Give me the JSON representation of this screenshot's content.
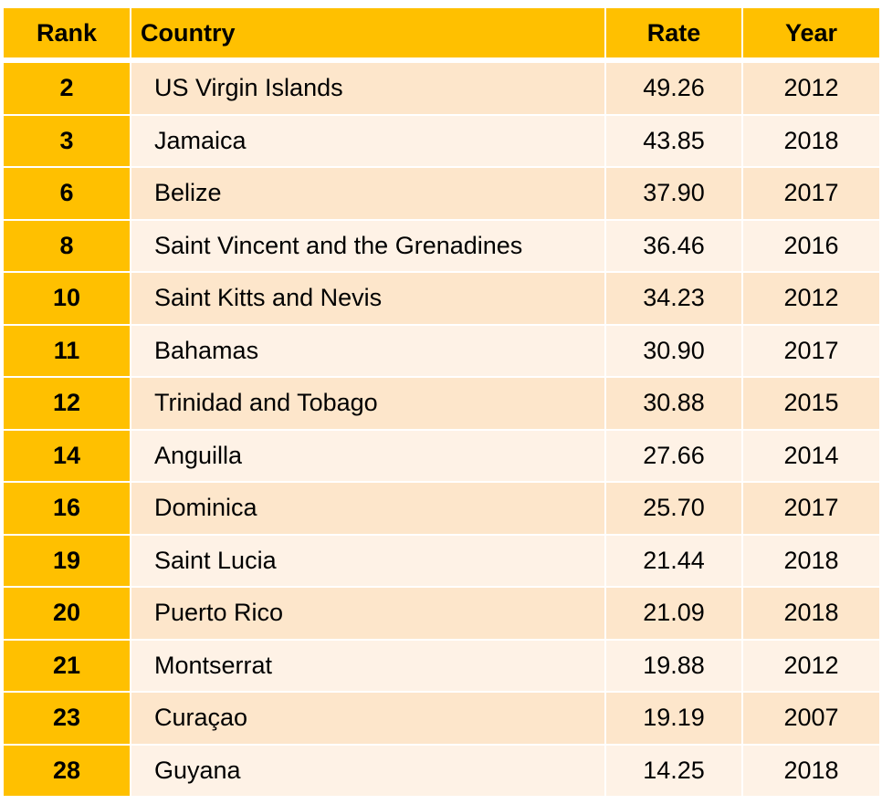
{
  "table": {
    "headers": [
      "Rank",
      "Country",
      "Rate",
      "Year"
    ],
    "rows": [
      {
        "rank": "2",
        "country": "US Virgin Islands",
        "rate": "49.26",
        "year": "2012"
      },
      {
        "rank": "3",
        "country": "Jamaica",
        "rate": "43.85",
        "year": "2018"
      },
      {
        "rank": "6",
        "country": "Belize",
        "rate": "37.90",
        "year": "2017"
      },
      {
        "rank": "8",
        "country": "Saint Vincent and the Grenadines",
        "rate": "36.46",
        "year": "2016"
      },
      {
        "rank": "10",
        "country": "Saint Kitts and Nevis",
        "rate": "34.23",
        "year": "2012"
      },
      {
        "rank": "11",
        "country": "Bahamas",
        "rate": "30.90",
        "year": "2017"
      },
      {
        "rank": "12",
        "country": "Trinidad and Tobago",
        "rate": "30.88",
        "year": "2015"
      },
      {
        "rank": "14",
        "country": "Anguilla",
        "rate": "27.66",
        "year": "2014"
      },
      {
        "rank": "16",
        "country": "Dominica",
        "rate": "25.70",
        "year": "2017"
      },
      {
        "rank": "19",
        "country": "Saint Lucia",
        "rate": "21.44",
        "year": "2018"
      },
      {
        "rank": "20",
        "country": "Puerto Rico",
        "rate": "21.09",
        "year": "2018"
      },
      {
        "rank": "21",
        "country": "Montserrat",
        "rate": "19.88",
        "year": "2012"
      },
      {
        "rank": "23",
        "country": "Curaçao",
        "rate": "19.19",
        "year": "2007"
      },
      {
        "rank": "28",
        "country": "Guyana",
        "rate": "14.25",
        "year": "2018"
      }
    ],
    "colors": {
      "header": "#FFC000",
      "rank_column": "#FFC000",
      "row_odd": "#FDE6CB",
      "row_even": "#FEF2E6"
    }
  }
}
